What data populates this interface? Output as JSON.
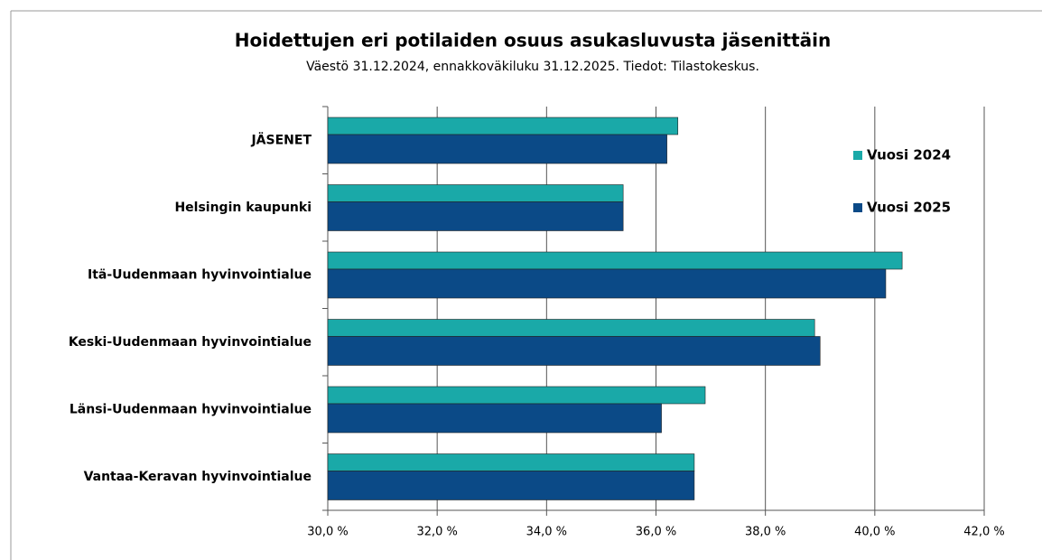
{
  "chart_data": {
    "type": "bar",
    "orientation": "horizontal",
    "title": "Hoidettujen eri potilaiden osuus asukasluvusta jäsenittäin",
    "subtitle": "Väestö 31.12.2024, ennakkoväkiluku 31.12.2025. Tiedot: Tilastokeskus.",
    "categories": [
      "JÄSENET",
      "Helsingin kaupunki",
      "Itä-Uudenmaan hyvinvointialue",
      "Keski-Uudenmaan hyvinvointialue",
      "Länsi-Uudenmaan hyvinvointialue",
      "Vantaa-Keravan hyvinvointialue"
    ],
    "series": [
      {
        "name": "Vuosi 2024",
        "color": "#1aa9a8",
        "values": [
          36.4,
          35.4,
          40.5,
          38.9,
          36.9,
          36.7
        ]
      },
      {
        "name": "Vuosi 2025",
        "color": "#0b4a87",
        "values": [
          36.2,
          35.4,
          40.2,
          39.0,
          36.1,
          36.7
        ]
      }
    ],
    "xlim": [
      30,
      42
    ],
    "xticks": [
      {
        "value": 30,
        "label": "30,0 %"
      },
      {
        "value": 32,
        "label": "32,0 %"
      },
      {
        "value": 34,
        "label": "34,0 %"
      },
      {
        "value": 36,
        "label": "36,0 %"
      },
      {
        "value": 38,
        "label": "38,0 %"
      },
      {
        "value": 40,
        "label": "40,0 %"
      },
      {
        "value": 42,
        "label": "42,0 %"
      }
    ],
    "grid": true,
    "legend": "right"
  }
}
